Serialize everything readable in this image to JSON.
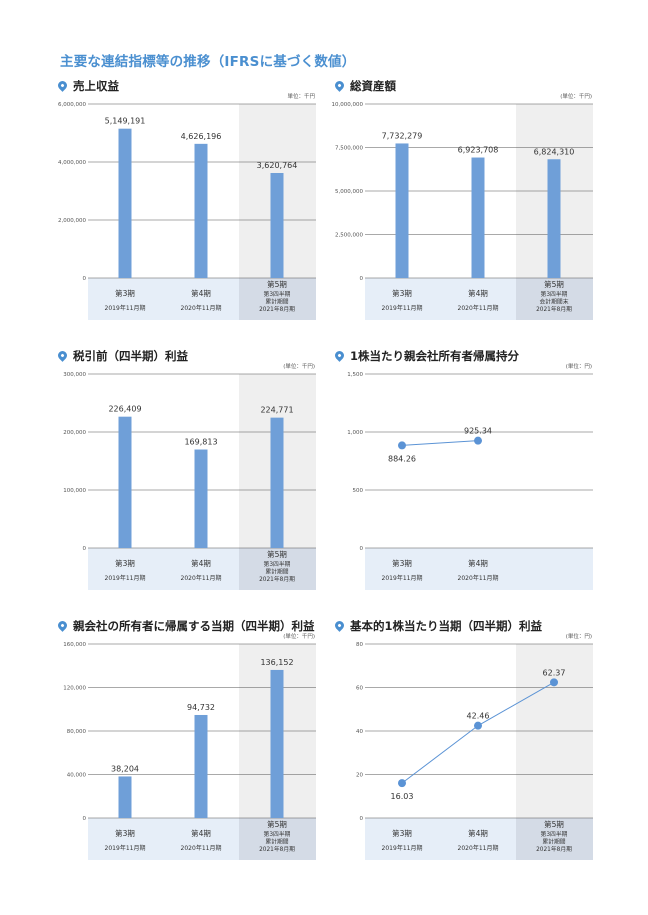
{
  "page_title": "主要な連結指標等の推移（IFRSに基づく数値）",
  "unit_label": "単位：千円",
  "unit_label_paren": "(単位：千円)",
  "unit_label_yen": "(単位：円)",
  "periods": [
    {
      "name": "第3期",
      "date": "2019年11月期"
    },
    {
      "name": "第4期",
      "date": "2020年11月期"
    },
    {
      "name": "第5期",
      "sub": [
        "第3四半期",
        "累計期間",
        "2021年8月期"
      ]
    }
  ],
  "period5_balance": [
    "第3四半期",
    "会計期間末",
    "2021年8月期"
  ],
  "chart_data": [
    {
      "type": "bar",
      "title": "売上収益",
      "unit": "単位：千円",
      "categories": [
        "第3期 2019年11月期",
        "第4期 2020年11月期",
        "第5期 第3四半期累計期間 2021年8月期"
      ],
      "values": [
        5149191,
        4626196,
        3620764
      ],
      "value_labels": [
        "5,149,191",
        "4,626,196",
        "3,620,764"
      ],
      "ylim": [
        0,
        6000000
      ],
      "yticks": [
        "6,000,000",
        "4,000,000",
        "2,000,000",
        "0"
      ]
    },
    {
      "type": "bar",
      "title": "総資産額",
      "unit": "(単位：千円)",
      "categories": [
        "第3期 2019年11月期",
        "第4期 2020年11月期",
        "第5期 第3四半期会計期間末 2021年8月期"
      ],
      "values": [
        7732279,
        6923708,
        6824310
      ],
      "value_labels": [
        "7,732,279",
        "6,923,708",
        "6,824,310"
      ],
      "ylim": [
        0,
        10000000
      ],
      "yticks": [
        "10,000,000",
        "7,500,000",
        "5,000,000",
        "2,500,000",
        "0"
      ]
    },
    {
      "type": "bar",
      "title": "税引前（四半期）利益",
      "unit": "(単位：千円)",
      "categories": [
        "第3期 2019年11月期",
        "第4期 2020年11月期",
        "第5期 第3四半期累計期間 2021年8月期"
      ],
      "values": [
        226409,
        169813,
        224771
      ],
      "value_labels": [
        "226,409",
        "169,813",
        "224,771"
      ],
      "ylim": [
        0,
        300000
      ],
      "yticks": [
        "300,000",
        "200,000",
        "100,000",
        "0"
      ]
    },
    {
      "type": "line",
      "title": "1株当たり親会社所有者帰属持分",
      "unit": "(単位：円)",
      "categories": [
        "第3期 2019年11月期",
        "第4期 2020年11月期"
      ],
      "values": [
        884.26,
        925.34
      ],
      "value_labels": [
        "884.26",
        "925.34"
      ],
      "ylim": [
        0,
        1500
      ],
      "yticks": [
        "1,500",
        "1,000",
        "500",
        "0"
      ]
    },
    {
      "type": "bar",
      "title": "親会社の所有者に帰属する当期（四半期）利益",
      "unit": "(単位：千円)",
      "categories": [
        "第3期 2019年11月期",
        "第4期 2020年11月期",
        "第5期 第3四半期累計期間 2021年8月期"
      ],
      "values": [
        38204,
        94732,
        136152
      ],
      "value_labels": [
        "38,204",
        "94,732",
        "136,152"
      ],
      "ylim": [
        0,
        160000
      ],
      "yticks": [
        "160,000",
        "120,000",
        "80,000",
        "40,000",
        "0"
      ]
    },
    {
      "type": "line",
      "title": "基本的1株当たり当期（四半期）利益",
      "unit": "(単位：円)",
      "categories": [
        "第3期 2019年11月期",
        "第4期 2020年11月期",
        "第5期 第3四半期累計期間 2021年8月期"
      ],
      "values": [
        16.03,
        42.46,
        62.37
      ],
      "value_labels": [
        "16.03",
        "42.46",
        "62.37"
      ],
      "ylim": [
        0,
        80
      ],
      "yticks": [
        "80",
        "60",
        "40",
        "20",
        "0"
      ]
    }
  ],
  "colors": {
    "bar": "#6f9fd8",
    "line": "#5b93d5",
    "accent": "#4a8fd0",
    "band": "#e6eef8",
    "band_dark": "#d4dbe6",
    "shade": "#efefef"
  }
}
